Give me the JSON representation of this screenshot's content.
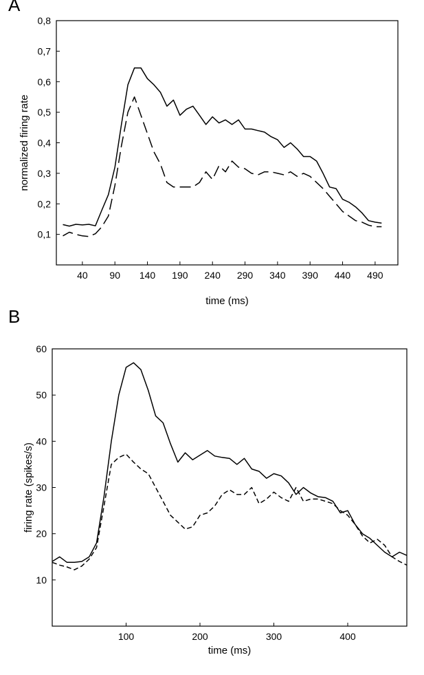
{
  "panels": {
    "a_letter": "A",
    "b_letter": "B"
  },
  "chart_data": [
    {
      "type": "line",
      "xlabel": "time (ms)",
      "ylabel": "normalized firing rate",
      "xlim": [
        0,
        525
      ],
      "ylim": [
        0.0,
        0.8
      ],
      "xticks": [
        40,
        90,
        140,
        190,
        240,
        290,
        340,
        390,
        440,
        490
      ],
      "xtick_labels": [
        "40",
        "90",
        "140",
        "190",
        "240",
        "290",
        "340",
        "390",
        "440",
        "490"
      ],
      "yticks": [
        0.1,
        0.2,
        0.3,
        0.4,
        0.5,
        0.6,
        0.7,
        0.8
      ],
      "ytick_labels": [
        "0,1",
        "0,2",
        "0,3",
        "0,4",
        "0,5",
        "0,6",
        "0,7",
        "0,8"
      ],
      "grid": false,
      "series": [
        {
          "style": "solid",
          "x": [
            10,
            20,
            30,
            40,
            50,
            60,
            70,
            80,
            90,
            100,
            110,
            120,
            130,
            140,
            150,
            160,
            170,
            180,
            190,
            200,
            210,
            220,
            230,
            240,
            250,
            260,
            270,
            280,
            290,
            300,
            310,
            320,
            330,
            340,
            350,
            360,
            370,
            380,
            390,
            400,
            410,
            420,
            430,
            440,
            450,
            460,
            470,
            480,
            490,
            500
          ],
          "y": [
            0.132,
            0.127,
            0.133,
            0.131,
            0.133,
            0.128,
            0.18,
            0.23,
            0.32,
            0.46,
            0.59,
            0.645,
            0.645,
            0.61,
            0.59,
            0.565,
            0.52,
            0.54,
            0.49,
            0.51,
            0.52,
            0.49,
            0.46,
            0.485,
            0.465,
            0.475,
            0.46,
            0.475,
            0.445,
            0.445,
            0.44,
            0.435,
            0.42,
            0.41,
            0.385,
            0.4,
            0.38,
            0.355,
            0.355,
            0.34,
            0.3,
            0.255,
            0.25,
            0.215,
            0.205,
            0.19,
            0.17,
            0.145,
            0.14,
            0.137
          ]
        },
        {
          "style": "dashed",
          "x": [
            10,
            20,
            30,
            40,
            50,
            60,
            70,
            80,
            90,
            100,
            110,
            120,
            130,
            140,
            150,
            160,
            170,
            180,
            190,
            200,
            210,
            220,
            230,
            240,
            250,
            260,
            270,
            280,
            290,
            300,
            310,
            320,
            330,
            340,
            350,
            360,
            370,
            380,
            390,
            400,
            410,
            420,
            430,
            440,
            450,
            460,
            470,
            480,
            490,
            500
          ],
          "y": [
            0.095,
            0.107,
            0.1,
            0.095,
            0.093,
            0.102,
            0.125,
            0.16,
            0.26,
            0.39,
            0.5,
            0.55,
            0.49,
            0.43,
            0.37,
            0.33,
            0.27,
            0.255,
            0.255,
            0.255,
            0.255,
            0.27,
            0.305,
            0.28,
            0.325,
            0.305,
            0.34,
            0.32,
            0.315,
            0.3,
            0.295,
            0.305,
            0.305,
            0.3,
            0.295,
            0.305,
            0.29,
            0.3,
            0.29,
            0.27,
            0.25,
            0.225,
            0.2,
            0.175,
            0.16,
            0.145,
            0.14,
            0.13,
            0.125,
            0.125
          ]
        }
      ]
    },
    {
      "type": "line",
      "xlabel": "time (ms)",
      "ylabel": "firing rate (spikes/s)",
      "xlim": [
        0,
        480
      ],
      "ylim": [
        0,
        60
      ],
      "xticks": [
        100,
        200,
        300,
        400
      ],
      "xtick_labels": [
        "100",
        "200",
        "300",
        "400"
      ],
      "yticks": [
        10,
        20,
        30,
        40,
        50,
        60
      ],
      "ytick_labels": [
        "10",
        "20",
        "30",
        "40",
        "50",
        "60"
      ],
      "grid": false,
      "series": [
        {
          "style": "solid",
          "x": [
            0,
            10,
            20,
            30,
            40,
            50,
            60,
            70,
            80,
            90,
            100,
            110,
            120,
            130,
            140,
            150,
            160,
            170,
            180,
            190,
            200,
            210,
            220,
            230,
            240,
            250,
            260,
            270,
            280,
            290,
            300,
            310,
            320,
            330,
            340,
            350,
            360,
            370,
            380,
            390,
            400,
            410,
            420,
            430,
            440,
            450,
            460,
            470,
            480
          ],
          "y": [
            14.0,
            15.0,
            13.8,
            13.8,
            14.0,
            15.0,
            18.0,
            28.0,
            40.0,
            50.0,
            56.0,
            57.0,
            55.5,
            51.0,
            45.5,
            44.0,
            39.5,
            35.5,
            37.5,
            36.0,
            37.0,
            38.0,
            36.8,
            36.5,
            36.3,
            35.0,
            36.3,
            34.0,
            33.5,
            32.0,
            33.0,
            32.5,
            31.0,
            28.5,
            30.0,
            28.8,
            28.0,
            27.8,
            27.0,
            24.5,
            25.0,
            22.0,
            20.0,
            19.0,
            17.5,
            16.0,
            15.0,
            16.0,
            15.3
          ]
        },
        {
          "style": "dashed",
          "x": [
            0,
            10,
            20,
            30,
            40,
            50,
            60,
            70,
            80,
            90,
            100,
            110,
            120,
            130,
            140,
            150,
            160,
            170,
            180,
            190,
            200,
            210,
            220,
            230,
            240,
            250,
            260,
            270,
            280,
            290,
            300,
            310,
            320,
            330,
            340,
            350,
            360,
            370,
            380,
            390,
            400,
            410,
            420,
            430,
            440,
            450,
            460,
            470,
            480
          ],
          "y": [
            13.8,
            13.2,
            12.8,
            12.2,
            13.0,
            14.5,
            17.0,
            26.0,
            35.0,
            36.5,
            37.2,
            35.5,
            34.0,
            33.0,
            30.0,
            27.0,
            24.0,
            22.5,
            21.0,
            21.5,
            24.0,
            24.5,
            26.0,
            28.5,
            29.5,
            28.5,
            28.5,
            30.0,
            26.5,
            27.5,
            29.0,
            27.8,
            27.0,
            30.0,
            27.0,
            27.5,
            27.5,
            27.0,
            26.5,
            25.0,
            24.0,
            22.0,
            19.5,
            18.0,
            18.8,
            17.5,
            15.0,
            14.0,
            13.2
          ]
        }
      ]
    }
  ]
}
